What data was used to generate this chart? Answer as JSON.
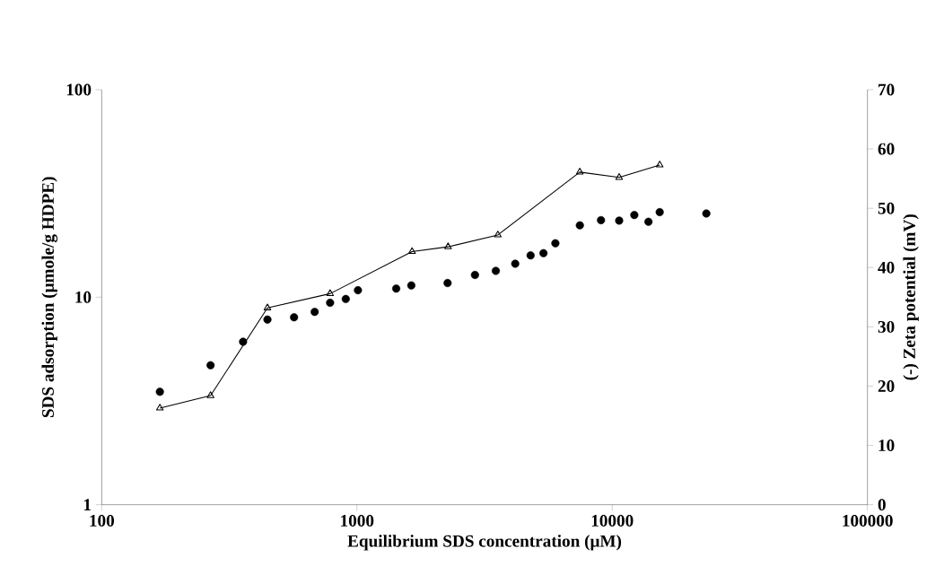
{
  "chart_data": {
    "type": "scatter",
    "xlabel": "Equilibrium SDS concentration (μM)",
    "ylabel": "SDS adsorption (μmole/g HDPE)",
    "y2label": "(-) Zeta potential (mV)",
    "log": "xy",
    "xlim": [
      100,
      100000
    ],
    "xticks": [
      100,
      1000,
      10000,
      100000
    ],
    "ylim": [
      1,
      100
    ],
    "yticks": [
      1,
      10,
      100
    ],
    "y2lim": [
      0,
      70
    ],
    "y2ticks": [
      0,
      10,
      20,
      30,
      40,
      50,
      60,
      70
    ],
    "series": [
      {
        "color": "#000000",
        "marker": "circle",
        "x": [
          169,
          267,
          358,
          446,
          567,
          683,
          785,
          904,
          1009,
          1425,
          1633,
          2265,
          2900,
          3500,
          4170,
          4790,
          5380,
          5990,
          7470,
          9040,
          10650,
          12210,
          13870,
          15350,
          23380
        ],
        "values": [
          3.5,
          4.7,
          6.1,
          7.8,
          8.0,
          8.5,
          9.4,
          9.8,
          10.8,
          11.0,
          11.4,
          11.7,
          12.8,
          13.4,
          14.5,
          15.9,
          16.3,
          18.2,
          22.2,
          23.5,
          23.4,
          24.9,
          23.1,
          25.7,
          25.3
        ]
      },
      {
        "type": "line",
        "axis": "y2",
        "color": "#000000",
        "marker": "triangle",
        "line_style": "solid",
        "x": [
          169,
          267,
          446,
          785,
          1644,
          2275,
          3565,
          7465,
          10650,
          15350
        ],
        "values": [
          16.3,
          18.4,
          33.2,
          35.6,
          42.7,
          43.5,
          45.5,
          56.1,
          55.2,
          57.3
        ]
      }
    ]
  }
}
